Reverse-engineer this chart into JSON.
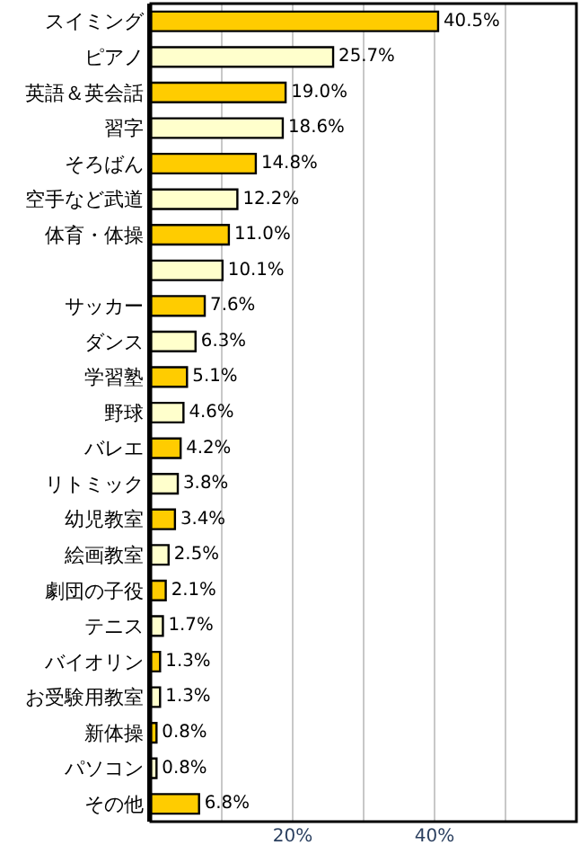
{
  "chart_data": {
    "type": "bar",
    "orientation": "horizontal",
    "categories": [
      "スイミング",
      "ピアノ",
      "英語＆英会話",
      "習字",
      "そろばん",
      "空手など武道",
      "体育・体操",
      null,
      "サッカー",
      "ダンス",
      "学習塾",
      "野球",
      "バレエ",
      "リトミック",
      "幼児教室",
      "絵画教室",
      "劇団の子役",
      "テニス",
      "バイオリン",
      "お受験用教室",
      "新体操",
      "パソコン",
      "その他"
    ],
    "values": [
      40.5,
      25.7,
      19.0,
      18.6,
      14.8,
      12.2,
      11.0,
      10.1,
      7.6,
      6.3,
      5.1,
      4.6,
      4.2,
      3.8,
      3.4,
      2.5,
      2.1,
      1.7,
      1.3,
      1.3,
      0.8,
      0.8,
      6.8
    ],
    "value_labels": [
      "40.5%",
      "25.7%",
      "19.0%",
      "18.6%",
      "14.8%",
      "12.2%",
      "11.0%",
      "10.1%",
      "7.6%",
      "6.3%",
      "5.1%",
      "4.6%",
      "4.2%",
      "3.8%",
      "3.4%",
      "2.5%",
      "2.1%",
      "1.7%",
      "1.3%",
      "1.3%",
      "0.8%",
      "0.8%",
      "6.8%"
    ],
    "colors": [
      "#ffcc00",
      "#ffffcc",
      "#ffcc00",
      "#ffffcc",
      "#ffcc00",
      "#ffffcc",
      "#ffcc00",
      "#ffffcc",
      "#ffcc00",
      "#ffffcc",
      "#ffcc00",
      "#ffffcc",
      "#ffcc00",
      "#ffffcc",
      "#ffcc00",
      "#ffffcc",
      "#ffcc00",
      "#ffffcc",
      "#ffcc00",
      "#ffffcc",
      "#ffcc00",
      "#ffffcc",
      "#ffcc00"
    ],
    "xlim": [
      0,
      60
    ],
    "xticks": [
      {
        "value": 0,
        "label": null
      },
      {
        "value": 10,
        "label": null
      },
      {
        "value": 20,
        "label": "20%"
      },
      {
        "value": 30,
        "label": null
      },
      {
        "value": 40,
        "label": "40%"
      },
      {
        "value": 50,
        "label": null
      }
    ],
    "grid": "x",
    "legend": false
  }
}
